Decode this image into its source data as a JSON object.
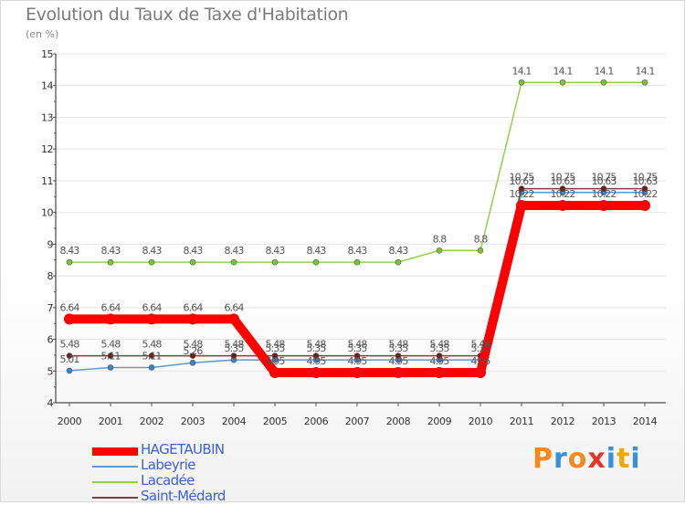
{
  "title": "Evolution du Taux de Taxe d'Habitation",
  "unit": "(en %)",
  "brand": {
    "letters": [
      "P",
      "r",
      "o",
      "x",
      "i",
      "t",
      "i"
    ],
    "colors": [
      "#f08a24",
      "#3a8fd8",
      "#f08a24",
      "#e8352a",
      "#3a8fd8",
      "#f0a800",
      "#3a8fd8"
    ]
  },
  "chart_data": {
    "type": "line",
    "title": "Evolution du Taux de Taxe d'Habitation",
    "ylabel": "(en %)",
    "xlabel": "",
    "ylim": [
      4,
      15
    ],
    "yticks": [
      "4",
      "5",
      "6",
      "7",
      "8",
      "9",
      "10",
      "11",
      "12",
      "13",
      "14",
      "15"
    ],
    "categories": [
      "2000",
      "2001",
      "2002",
      "2003",
      "2004",
      "2005",
      "2006",
      "2007",
      "2008",
      "2009",
      "2010",
      "2011",
      "2012",
      "2013",
      "2014"
    ],
    "series": [
      {
        "name": "HAGETAUBIN",
        "color": "#ff0000",
        "emphasis": true,
        "values": [
          6.64,
          6.64,
          6.64,
          6.64,
          6.64,
          4.95,
          4.95,
          4.95,
          4.95,
          4.95,
          4.95,
          10.22,
          10.22,
          10.22,
          10.22
        ],
        "labels": [
          "6.64",
          "6.64",
          "6.64",
          "6.64",
          "6.64",
          "4.95",
          "4.95",
          "4.95",
          "4.95",
          "4.95",
          "4.95",
          "10.22",
          "10.22",
          "10.22",
          "10.22"
        ]
      },
      {
        "name": "Labeyrie",
        "color": "#5b9bd5",
        "marker": "#3f83c6",
        "values": [
          5.01,
          5.11,
          5.11,
          5.26,
          5.35,
          5.35,
          5.35,
          5.35,
          5.35,
          5.35,
          5.35,
          10.63,
          10.63,
          10.63,
          10.63
        ],
        "labels": [
          "5.01",
          "5.11",
          "5.11",
          "5.26",
          "5.35",
          "5.35",
          "5.35",
          "5.35",
          "5.35",
          "5.35",
          "5.35",
          "10.63",
          "10.63",
          "10.63",
          "10.63"
        ]
      },
      {
        "name": "Lacadée",
        "color": "#92d050",
        "marker": "#7cc23a",
        "values": [
          8.43,
          8.43,
          8.43,
          8.43,
          8.43,
          8.43,
          8.43,
          8.43,
          8.43,
          8.8,
          8.8,
          14.1,
          14.1,
          14.1,
          14.1
        ],
        "labels": [
          "8.43",
          "8.43",
          "8.43",
          "8.43",
          "8.43",
          "8.43",
          "8.43",
          "8.43",
          "8.43",
          "8.8",
          "8.8",
          "14.1",
          "14.1",
          "14.1",
          "14.1"
        ]
      },
      {
        "name": "Saint-Médard",
        "color": "#7f3f3f",
        "marker": "#6b1f1f",
        "values": [
          5.48,
          5.48,
          5.48,
          5.48,
          5.48,
          5.48,
          5.48,
          5.48,
          5.48,
          5.48,
          5.48,
          10.75,
          10.75,
          10.75,
          10.75
        ],
        "labels": [
          "5.48",
          "5.48",
          "5.48",
          "5.48",
          "5.48",
          "5.48",
          "5.48",
          "5.48",
          "5.48",
          "5.48",
          "5.48",
          "10.75",
          "10.75",
          "10.75",
          "10.75"
        ]
      }
    ],
    "legend": {
      "position": "bottom-left",
      "text_color": "#3d5fd9"
    }
  }
}
